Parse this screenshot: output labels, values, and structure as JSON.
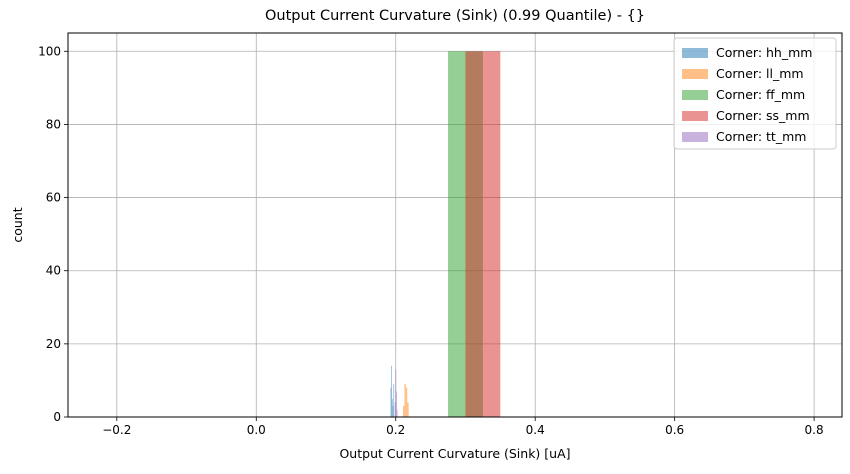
{
  "chart_data": {
    "type": "bar",
    "title": "Output Current Curvature (Sink) (0.99 Quantile) - {}",
    "xlabel": "Output Current Curvature (Sink) [uA]",
    "ylabel": "count",
    "xlim": [
      -0.27,
      0.84
    ],
    "ylim": [
      0,
      105
    ],
    "xticks": [
      -0.2,
      0.0,
      0.2,
      0.4,
      0.6,
      0.8
    ],
    "xtick_labels": [
      "−0.2",
      "0.0",
      "0.2",
      "0.4",
      "0.6",
      "0.8"
    ],
    "yticks": [
      0,
      20,
      40,
      60,
      80,
      100
    ],
    "ytick_labels": [
      "0",
      "20",
      "40",
      "60",
      "80",
      "100"
    ],
    "grid": true,
    "legend_position": "top-right",
    "series": [
      {
        "name": "Corner: hh_mm",
        "color": "#1f77b4",
        "bins": [
          {
            "x0": 0.1925,
            "x1": 0.1935,
            "count": 8
          },
          {
            "x0": 0.1935,
            "x1": 0.1945,
            "count": 14
          },
          {
            "x0": 0.1945,
            "x1": 0.1955,
            "count": 5
          },
          {
            "x0": 0.1955,
            "x1": 0.1965,
            "count": 3
          },
          {
            "x0": 0.1965,
            "x1": 0.1975,
            "count": 9
          }
        ]
      },
      {
        "name": "Corner: ll_mm",
        "color": "#ff7f0e",
        "bins": [
          {
            "x0": 0.2105,
            "x1": 0.2125,
            "count": 3
          },
          {
            "x0": 0.2125,
            "x1": 0.2145,
            "count": 9
          },
          {
            "x0": 0.2145,
            "x1": 0.2165,
            "count": 8
          },
          {
            "x0": 0.2165,
            "x1": 0.2185,
            "count": 4
          }
        ]
      },
      {
        "name": "Corner: ff_mm",
        "color": "#2ca02c",
        "bins": [
          {
            "x0": 0.275,
            "x1": 0.325,
            "count": 100
          }
        ]
      },
      {
        "name": "Corner: ss_mm",
        "color": "#d62728",
        "bins": [
          {
            "x0": 0.3,
            "x1": 0.35,
            "count": 100
          }
        ]
      },
      {
        "name": "Corner: tt_mm",
        "color": "#9467bd",
        "bins": [
          {
            "x0": 0.1985,
            "x1": 0.1995,
            "count": 4
          },
          {
            "x0": 0.1995,
            "x1": 0.2005,
            "count": 13
          },
          {
            "x0": 0.2005,
            "x1": 0.2015,
            "count": 7
          },
          {
            "x0": 0.2015,
            "x1": 0.2025,
            "count": 2
          }
        ]
      }
    ]
  }
}
